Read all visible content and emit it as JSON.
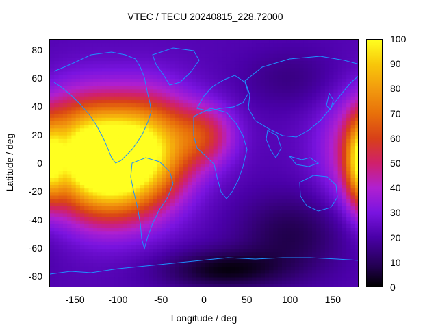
{
  "chart_data": {
    "type": "heatmap",
    "title": "VTEC / TECU 20240815_228.72000",
    "xlabel": "Longitude / deg",
    "ylabel": "Latitude / deg",
    "xlim": [
      -180,
      180
    ],
    "ylim": [
      -87.5,
      87.5
    ],
    "x_ticks": [
      -150,
      -100,
      -50,
      0,
      50,
      100,
      150
    ],
    "y_ticks": [
      80,
      60,
      40,
      20,
      0,
      -20,
      -40,
      -60,
      -80
    ],
    "colorbar": {
      "range": [
        0,
        100
      ],
      "ticks": [
        100,
        90,
        80,
        70,
        60,
        50,
        40,
        30,
        20,
        10,
        0
      ],
      "colormap": "black-purple-red-orange-yellow"
    },
    "coastline_color": "#1e90ff",
    "tec_features": [
      {
        "lon": -110,
        "lat": -5,
        "value": 95,
        "sigma_lon": 45,
        "sigma_lat": 25
      },
      {
        "lon": -140,
        "lat": 15,
        "value": 70,
        "sigma_lon": 45,
        "sigma_lat": 25
      },
      {
        "lon": -60,
        "lat": 15,
        "value": 65,
        "sigma_lon": 35,
        "sigma_lat": 25
      },
      {
        "lon": 0,
        "lat": 20,
        "value": 50,
        "sigma_lon": 25,
        "sigma_lat": 15
      },
      {
        "lon": 180,
        "lat": 0,
        "value": 60,
        "sigma_lon": 10,
        "sigma_lat": 20
      },
      {
        "lon": 100,
        "lat": -50,
        "value": 8,
        "sigma_lon": 45,
        "sigma_lat": 20
      },
      {
        "lon": 20,
        "lat": -75,
        "value": 3,
        "sigma_lon": 50,
        "sigma_lat": 10
      },
      {
        "lon": 100,
        "lat": 60,
        "value": 15,
        "sigma_lon": 40,
        "sigma_lat": 15
      }
    ],
    "background_value": 22
  }
}
